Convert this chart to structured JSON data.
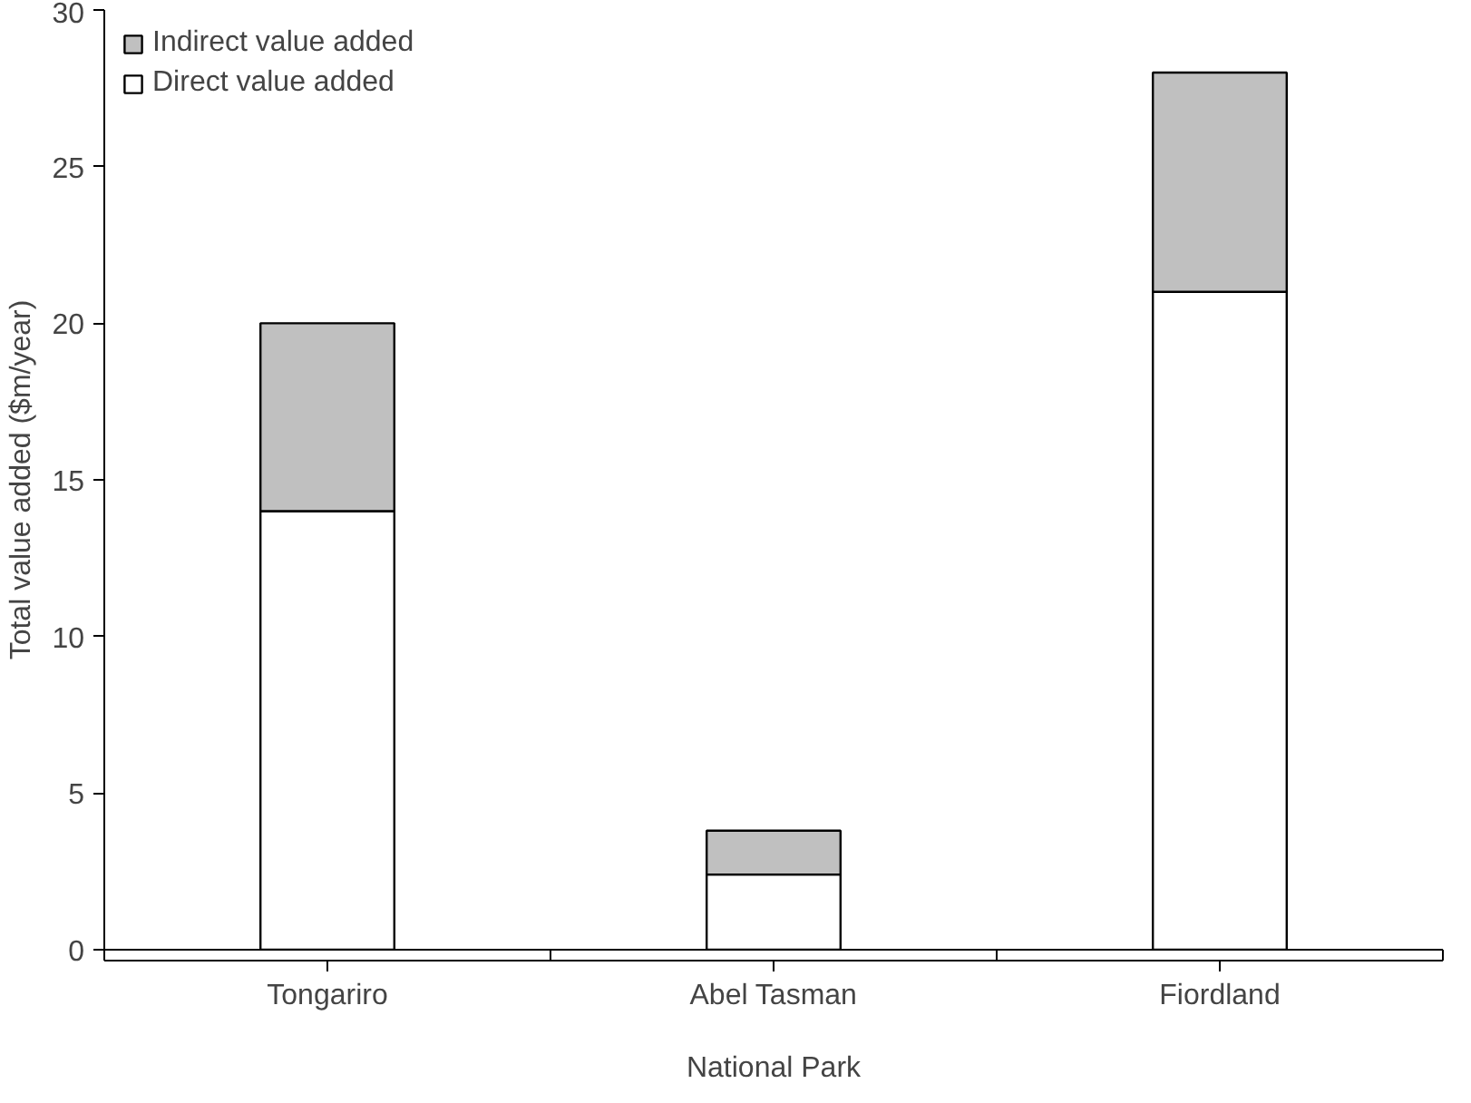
{
  "chart_data": {
    "type": "bar",
    "stacked": true,
    "xlabel": "National Park",
    "ylabel": "Total value added ($m/year)",
    "categories": [
      "Tongariro",
      "Abel Tasman",
      "Fiordland"
    ],
    "series": [
      {
        "name": "Direct value added",
        "color": "#ffffff",
        "values": [
          14,
          2.4,
          21
        ]
      },
      {
        "name": "Indirect value added",
        "color": "#c0c0c0",
        "values": [
          6,
          1.4,
          7
        ]
      }
    ],
    "ylim": [
      0,
      30
    ],
    "yticks": [
      0,
      5,
      10,
      15,
      20,
      25,
      30
    ],
    "grid": false,
    "legend": "top left"
  }
}
